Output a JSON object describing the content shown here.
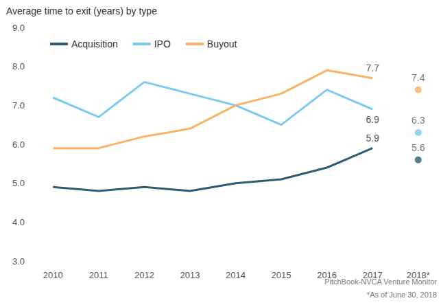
{
  "chart_data": {
    "type": "line",
    "title": "Average time to exit (years) by type",
    "annotations": [
      "PitchBook-NVCA Venture Monitor",
      "*As of June 30, 2018"
    ],
    "categories": [
      "2010",
      "2011",
      "2012",
      "2013",
      "2014",
      "2015",
      "2016",
      "2017",
      "2018*"
    ],
    "ylim": [
      3,
      9
    ],
    "yticks": [
      {
        "value": 3,
        "label": "3.0"
      },
      {
        "value": 4,
        "label": "4.0"
      },
      {
        "value": 5,
        "label": "5.0"
      },
      {
        "value": 6,
        "label": "6.0"
      },
      {
        "value": 7,
        "label": "7.0"
      },
      {
        "value": 8,
        "label": "8.0"
      },
      {
        "value": 9,
        "label": "9.0"
      }
    ],
    "grid": false,
    "legend": "top-left",
    "series": [
      {
        "name": "Acquisition",
        "type": "line",
        "color": "#2e5b72",
        "values": [
          4.9,
          4.8,
          4.9,
          4.8,
          5.0,
          5.1,
          5.4,
          5.9,
          null
        ],
        "value_labels": [
          null,
          null,
          null,
          null,
          null,
          null,
          null,
          "5.9",
          null
        ]
      },
      {
        "name": "IPO",
        "type": "line",
        "color": "#7dc8ee",
        "values": [
          7.2,
          6.7,
          7.6,
          7.3,
          7.0,
          6.5,
          7.4,
          6.9,
          null
        ],
        "value_labels": [
          null,
          null,
          null,
          null,
          null,
          null,
          null,
          "6.9",
          null
        ]
      },
      {
        "name": "Buyout",
        "type": "line",
        "color": "#f7b267",
        "values": [
          5.9,
          5.9,
          6.2,
          6.4,
          7.0,
          7.3,
          7.9,
          7.7,
          null
        ],
        "value_labels": [
          null,
          null,
          null,
          null,
          null,
          null,
          null,
          "7.7",
          null
        ]
      },
      {
        "name": "Acquisition",
        "type": "scatter",
        "color": "#2e5b72",
        "data_labels": true,
        "values": [
          null,
          null,
          null,
          null,
          null,
          null,
          null,
          null,
          5.6
        ]
      },
      {
        "name": "IPO",
        "type": "scatter",
        "color": "#7dc8ee",
        "data_labels": true,
        "values": [
          null,
          null,
          null,
          null,
          null,
          null,
          null,
          null,
          6.3
        ]
      },
      {
        "name": "Buyout",
        "type": "scatter",
        "color": "#f7b267",
        "data_labels": true,
        "values": [
          null,
          null,
          null,
          null,
          null,
          null,
          null,
          null,
          7.4
        ]
      }
    ]
  }
}
